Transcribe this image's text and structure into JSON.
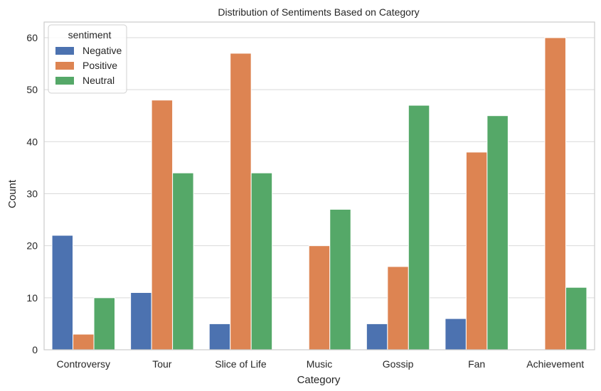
{
  "chart_data": {
    "type": "bar",
    "title": "Distribution of Sentiments Based on Category",
    "xlabel": "Category",
    "ylabel": "Count",
    "categories": [
      "Controversy",
      "Tour",
      "Slice of Life",
      "Music",
      "Gossip",
      "Fan",
      "Achievement"
    ],
    "series": [
      {
        "name": "Negative",
        "color": "#4c72b0",
        "values": [
          22,
          11,
          5,
          0,
          5,
          6,
          0
        ]
      },
      {
        "name": "Positive",
        "color": "#dd8452",
        "values": [
          3,
          48,
          57,
          20,
          16,
          38,
          60
        ]
      },
      {
        "name": "Neutral",
        "color": "#55a868",
        "values": [
          10,
          34,
          34,
          27,
          47,
          45,
          12
        ]
      }
    ],
    "ylim": [
      0,
      63
    ],
    "yticks": [
      0,
      10,
      20,
      30,
      40,
      50,
      60
    ],
    "grid": true,
    "legend": {
      "title": "sentiment",
      "placement": "top-left"
    }
  }
}
